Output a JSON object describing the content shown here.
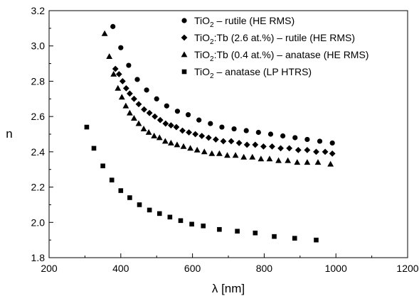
{
  "chart_data": {
    "type": "scatter",
    "xlabel": "λ [nm]",
    "ylabel": "n",
    "xlim": [
      200,
      1200
    ],
    "ylim": [
      1.8,
      3.2
    ],
    "x_ticks": [
      200,
      400,
      600,
      800,
      1000,
      1200
    ],
    "x_tick_labels": [
      "200",
      "400",
      "600",
      "800",
      "1000",
      "1200"
    ],
    "y_ticks": [
      1.8,
      2.0,
      2.2,
      2.4,
      2.6,
      2.8,
      3.0,
      3.2
    ],
    "y_tick_labels": [
      "1.8",
      "2.0",
      "2.2",
      "2.4",
      "2.6",
      "2.8",
      "3.0",
      "3.2"
    ],
    "grid": false,
    "legend_position": "top-right",
    "series": [
      {
        "name_parts": [
          "TiO",
          "2",
          " – rutile (HE RMS)"
        ],
        "marker": "circle",
        "x": [
          378,
          400,
          422,
          446,
          472,
          500,
          528,
          558,
          588,
          618,
          650,
          682,
          716,
          750,
          784,
          818,
          852,
          886,
          920,
          955,
          990
        ],
        "y": [
          3.11,
          2.99,
          2.89,
          2.81,
          2.75,
          2.7,
          2.66,
          2.63,
          2.61,
          2.58,
          2.56,
          2.54,
          2.53,
          2.52,
          2.51,
          2.5,
          2.49,
          2.48,
          2.47,
          2.46,
          2.45
        ]
      },
      {
        "name_parts": [
          "TiO",
          "2",
          ":Tb (2.6 at.%) – rutile (HE RMS)"
        ],
        "marker": "diamond",
        "x": [
          385,
          395,
          405,
          415,
          425,
          437,
          450,
          465,
          480,
          495,
          510,
          525,
          540,
          555,
          572,
          590,
          608,
          626,
          645,
          665,
          686,
          708,
          730,
          752,
          775,
          798,
          822,
          846,
          870,
          895,
          920,
          945,
          970,
          990
        ],
        "y": [
          2.87,
          2.84,
          2.8,
          2.76,
          2.73,
          2.7,
          2.67,
          2.64,
          2.62,
          2.6,
          2.58,
          2.56,
          2.55,
          2.54,
          2.52,
          2.51,
          2.5,
          2.49,
          2.48,
          2.47,
          2.46,
          2.46,
          2.45,
          2.44,
          2.44,
          2.43,
          2.43,
          2.42,
          2.42,
          2.41,
          2.41,
          2.4,
          2.4,
          2.39
        ]
      },
      {
        "name_parts": [
          "TiO",
          "2",
          ":Tb (0.4 at.%) – anatase (HE RMS)"
        ],
        "marker": "triangle",
        "x": [
          355,
          368,
          380,
          392,
          403,
          414,
          425,
          437,
          450,
          464,
          478,
          493,
          508,
          524,
          540,
          557,
          575,
          594,
          613,
          633,
          654,
          675,
          697,
          720,
          743,
          767,
          791,
          815,
          840,
          866,
          892,
          920,
          950,
          985
        ],
        "y": [
          3.07,
          2.94,
          2.84,
          2.76,
          2.71,
          2.66,
          2.62,
          2.59,
          2.56,
          2.53,
          2.51,
          2.49,
          2.48,
          2.46,
          2.45,
          2.44,
          2.43,
          2.42,
          2.41,
          2.4,
          2.39,
          2.39,
          2.38,
          2.38,
          2.37,
          2.37,
          2.36,
          2.36,
          2.35,
          2.35,
          2.34,
          2.34,
          2.34,
          2.33
        ]
      },
      {
        "name_parts": [
          "TiO",
          "2",
          " – anatase (LP HTRS)"
        ],
        "marker": "square",
        "x": [
          305,
          325,
          350,
          375,
          400,
          425,
          452,
          480,
          508,
          537,
          567,
          598,
          630,
          675,
          725,
          775,
          828,
          885,
          945
        ],
        "y": [
          2.54,
          2.42,
          2.32,
          2.24,
          2.18,
          2.14,
          2.1,
          2.07,
          2.05,
          2.03,
          2.01,
          1.99,
          1.98,
          1.96,
          1.95,
          1.94,
          1.92,
          1.91,
          1.9
        ]
      }
    ]
  }
}
